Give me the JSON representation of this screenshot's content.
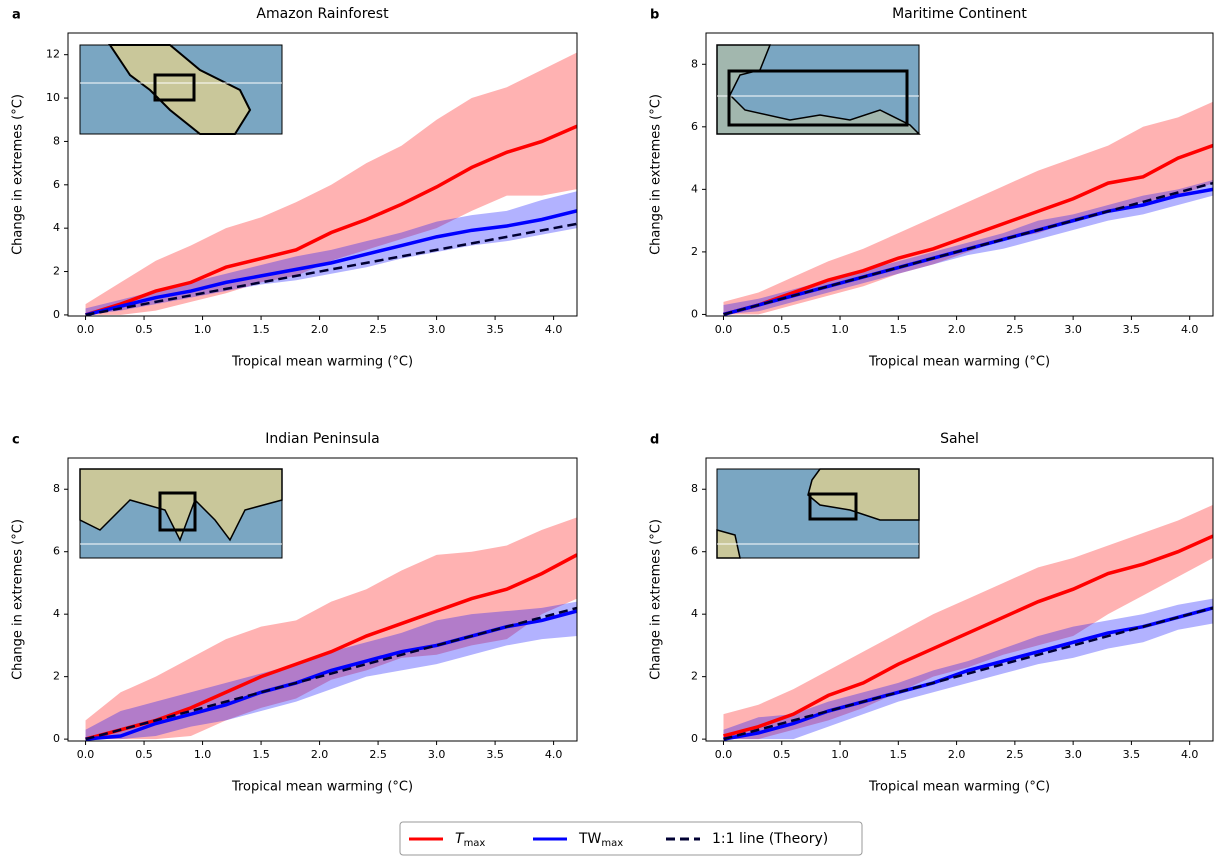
{
  "chart_data": [
    {
      "type": "line",
      "label": "a",
      "title": "Amazon Rainforest",
      "xlabel": "Tropical mean warming (°C)",
      "ylabel": "Change in extremes (°C)",
      "x": [
        0,
        0.3,
        0.6,
        0.9,
        1.2,
        1.5,
        1.8,
        2.1,
        2.4,
        2.7,
        3.0,
        3.3,
        3.6,
        3.9,
        4.2
      ],
      "xlim": [
        -0.15,
        4.2
      ],
      "ylim": [
        -0.05,
        13
      ],
      "xticks": [
        {
          "value": 0,
          "label": "0.0"
        },
        0.5,
        {
          "value": 1,
          "label": "1.0"
        },
        1.5,
        {
          "value": 2,
          "label": "2.0"
        },
        2.5,
        {
          "value": 3,
          "label": "3.0"
        },
        3.5,
        {
          "value": 4,
          "label": "4.0"
        }
      ],
      "yticks": [
        0,
        2,
        4,
        6,
        8,
        10,
        12
      ],
      "series": [
        {
          "name": "T",
          "subscript": "max",
          "color": "#ff0000",
          "values": [
            0,
            0.5,
            1.1,
            1.5,
            2.2,
            2.6,
            3.0,
            3.8,
            4.4,
            5.1,
            5.9,
            6.8,
            7.5,
            8.0,
            8.7
          ],
          "lower": [
            0,
            0,
            0.2,
            0.6,
            1.0,
            1.5,
            1.8,
            2.5,
            3.0,
            3.5,
            4.0,
            4.8,
            5.5,
            5.5,
            5.8
          ],
          "upper": [
            0.5,
            1.5,
            2.5,
            3.2,
            4.0,
            4.5,
            5.2,
            6.0,
            7.0,
            7.8,
            9.0,
            10.0,
            10.5,
            11.3,
            12.1
          ]
        },
        {
          "name": "TW",
          "subscript": "max",
          "color": "#0000ff",
          "values": [
            0,
            0.4,
            0.8,
            1.1,
            1.5,
            1.8,
            2.1,
            2.4,
            2.8,
            3.2,
            3.6,
            3.9,
            4.1,
            4.4,
            4.8
          ],
          "lower": [
            0,
            0.2,
            0.5,
            0.8,
            1.1,
            1.4,
            1.6,
            1.9,
            2.2,
            2.6,
            2.9,
            3.2,
            3.4,
            3.7,
            4.0
          ],
          "upper": [
            0.3,
            0.7,
            1.1,
            1.5,
            1.9,
            2.3,
            2.7,
            3.0,
            3.4,
            3.8,
            4.3,
            4.6,
            4.8,
            5.3,
            5.7
          ]
        },
        {
          "name": "1:1 line (Theory)",
          "color": "#000033",
          "dashed": true,
          "values": [
            0,
            0.3,
            0.6,
            0.9,
            1.2,
            1.5,
            1.8,
            2.1,
            2.4,
            2.7,
            3.0,
            3.3,
            3.6,
            3.9,
            4.2
          ]
        }
      ]
    },
    {
      "type": "line",
      "label": "b",
      "title": "Maritime Continent",
      "xlabel": "Tropical mean warming (°C)",
      "ylabel": "Change in extremes (°C)",
      "x": [
        0,
        0.3,
        0.6,
        0.9,
        1.2,
        1.5,
        1.8,
        2.1,
        2.4,
        2.7,
        3.0,
        3.3,
        3.6,
        3.9,
        4.2
      ],
      "xlim": [
        -0.15,
        4.2
      ],
      "ylim": [
        -0.05,
        9
      ],
      "xticks": [
        {
          "value": 0,
          "label": "0.0"
        },
        0.5,
        {
          "value": 1,
          "label": "1.0"
        },
        1.5,
        {
          "value": 2,
          "label": "2.0"
        },
        2.5,
        {
          "value": 3,
          "label": "3.0"
        },
        3.5,
        {
          "value": 4,
          "label": "4.0"
        }
      ],
      "yticks": [
        0,
        2,
        4,
        6,
        8
      ],
      "series": [
        {
          "color": "#ff0000",
          "values": [
            0,
            0.3,
            0.7,
            1.1,
            1.4,
            1.8,
            2.1,
            2.5,
            2.9,
            3.3,
            3.7,
            4.2,
            4.4,
            5.0,
            5.4
          ],
          "lower": [
            0,
            0,
            0.3,
            0.6,
            0.9,
            1.3,
            1.6,
            2.0,
            2.4,
            2.6,
            3.0,
            3.3,
            3.6,
            3.8,
            4.2
          ],
          "upper": [
            0.4,
            0.7,
            1.2,
            1.7,
            2.1,
            2.6,
            3.1,
            3.6,
            4.1,
            4.6,
            5.0,
            5.4,
            6.0,
            6.3,
            6.8
          ]
        },
        {
          "color": "#0000ff",
          "values": [
            0,
            0.3,
            0.6,
            0.9,
            1.2,
            1.5,
            1.8,
            2.1,
            2.4,
            2.7,
            3.0,
            3.3,
            3.5,
            3.8,
            4.0
          ],
          "lower": [
            0,
            0.1,
            0.4,
            0.7,
            1.0,
            1.3,
            1.6,
            1.9,
            2.1,
            2.4,
            2.7,
            3.0,
            3.2,
            3.5,
            3.8
          ],
          "upper": [
            0.3,
            0.5,
            0.8,
            1.1,
            1.4,
            1.7,
            2.0,
            2.3,
            2.6,
            3.0,
            3.2,
            3.5,
            3.8,
            4.0,
            4.3
          ]
        },
        {
          "color": "#000033",
          "dashed": true,
          "values": [
            0,
            0.3,
            0.6,
            0.9,
            1.2,
            1.5,
            1.8,
            2.1,
            2.4,
            2.7,
            3.0,
            3.3,
            3.6,
            3.9,
            4.2
          ]
        }
      ]
    },
    {
      "type": "line",
      "label": "c",
      "title": "Indian Peninsula",
      "xlabel": "Tropical mean warming (°C)",
      "ylabel": "Change in extremes (°C)",
      "x": [
        0,
        0.3,
        0.6,
        0.9,
        1.2,
        1.5,
        1.8,
        2.1,
        2.4,
        2.7,
        3.0,
        3.3,
        3.6,
        3.9,
        4.2
      ],
      "xlim": [
        -0.15,
        4.2
      ],
      "ylim": [
        -0.06,
        9
      ],
      "xticks": [
        {
          "value": 0,
          "label": "0.0"
        },
        0.5,
        {
          "value": 1,
          "label": "1.0"
        },
        1.5,
        {
          "value": 2,
          "label": "2.0"
        },
        2.5,
        {
          "value": 3,
          "label": "3.0"
        },
        3.5,
        {
          "value": 4,
          "label": "4.0"
        }
      ],
      "yticks": [
        0,
        2,
        4,
        6,
        8
      ],
      "series": [
        {
          "color": "#ff0000",
          "values": [
            0,
            0.3,
            0.6,
            1.0,
            1.5,
            2.0,
            2.4,
            2.8,
            3.3,
            3.7,
            4.1,
            4.5,
            4.8,
            5.3,
            5.9
          ],
          "lower": [
            0,
            0,
            0,
            0.1,
            0.6,
            1.0,
            1.3,
            1.9,
            2.2,
            2.6,
            2.7,
            3.0,
            3.2,
            4.0,
            4.5
          ],
          "upper": [
            0.6,
            1.5,
            2.0,
            2.6,
            3.2,
            3.6,
            3.8,
            4.4,
            4.8,
            5.4,
            5.9,
            6.0,
            6.2,
            6.7,
            7.1
          ]
        },
        {
          "color": "#0000ff",
          "values": [
            0,
            0.1,
            0.5,
            0.8,
            1.1,
            1.5,
            1.8,
            2.2,
            2.5,
            2.8,
            3.0,
            3.3,
            3.6,
            3.8,
            4.1
          ],
          "lower": [
            0,
            0,
            0.1,
            0.4,
            0.6,
            0.9,
            1.2,
            1.6,
            2.0,
            2.2,
            2.4,
            2.7,
            3.0,
            3.2,
            3.3
          ],
          "upper": [
            0.3,
            0.9,
            1.2,
            1.5,
            1.8,
            2.1,
            2.4,
            2.8,
            3.1,
            3.4,
            3.8,
            4.0,
            4.1,
            4.2,
            4.4
          ]
        },
        {
          "color": "#000033",
          "dashed": true,
          "values": [
            0,
            0.3,
            0.6,
            0.9,
            1.2,
            1.5,
            1.8,
            2.1,
            2.4,
            2.7,
            3.0,
            3.3,
            3.6,
            3.9,
            4.2
          ]
        }
      ]
    },
    {
      "type": "line",
      "label": "d",
      "title": "Sahel",
      "xlabel": "Tropical mean warming (°C)",
      "ylabel": "Change in extremes (°C)",
      "x": [
        0,
        0.3,
        0.6,
        0.9,
        1.2,
        1.5,
        1.8,
        2.1,
        2.4,
        2.7,
        3.0,
        3.3,
        3.6,
        3.9,
        4.2
      ],
      "xlim": [
        -0.15,
        4.2
      ],
      "ylim": [
        -0.06,
        9
      ],
      "xticks": [
        {
          "value": 0,
          "label": "0.0"
        },
        0.5,
        {
          "value": 1,
          "label": "1.0"
        },
        1.5,
        {
          "value": 2,
          "label": "2.0"
        },
        2.5,
        {
          "value": 3,
          "label": "3.0"
        },
        3.5,
        {
          "value": 4,
          "label": "4.0"
        }
      ],
      "yticks": [
        0,
        2,
        4,
        6,
        8
      ],
      "series": [
        {
          "color": "#ff0000",
          "values": [
            0.1,
            0.4,
            0.8,
            1.4,
            1.8,
            2.4,
            2.9,
            3.4,
            3.9,
            4.4,
            4.8,
            5.3,
            5.6,
            6.0,
            6.5
          ],
          "lower": [
            0,
            0,
            0.3,
            0.6,
            1.0,
            1.5,
            2.0,
            2.3,
            2.7,
            3.0,
            3.3,
            4.0,
            4.6,
            5.2,
            5.8
          ],
          "upper": [
            0.8,
            1.1,
            1.6,
            2.2,
            2.8,
            3.4,
            4.0,
            4.5,
            5.0,
            5.5,
            5.8,
            6.2,
            6.6,
            7.0,
            7.5
          ]
        },
        {
          "color": "#0000ff",
          "values": [
            0,
            0.2,
            0.5,
            0.9,
            1.2,
            1.5,
            1.8,
            2.2,
            2.5,
            2.8,
            3.1,
            3.4,
            3.6,
            3.9,
            4.2
          ],
          "lower": [
            0,
            0,
            0,
            0.4,
            0.8,
            1.2,
            1.5,
            1.8,
            2.1,
            2.4,
            2.6,
            2.9,
            3.1,
            3.5,
            3.7
          ],
          "upper": [
            0.3,
            0.7,
            0.8,
            1.2,
            1.5,
            1.8,
            2.2,
            2.5,
            2.9,
            3.3,
            3.6,
            3.8,
            4.0,
            4.3,
            4.5
          ]
        },
        {
          "color": "#000033",
          "dashed": true,
          "values": [
            0,
            0.3,
            0.6,
            0.9,
            1.2,
            1.5,
            1.8,
            2.1,
            2.4,
            2.7,
            3.0,
            3.3,
            3.6,
            3.9,
            4.2
          ]
        }
      ]
    }
  ]
}
